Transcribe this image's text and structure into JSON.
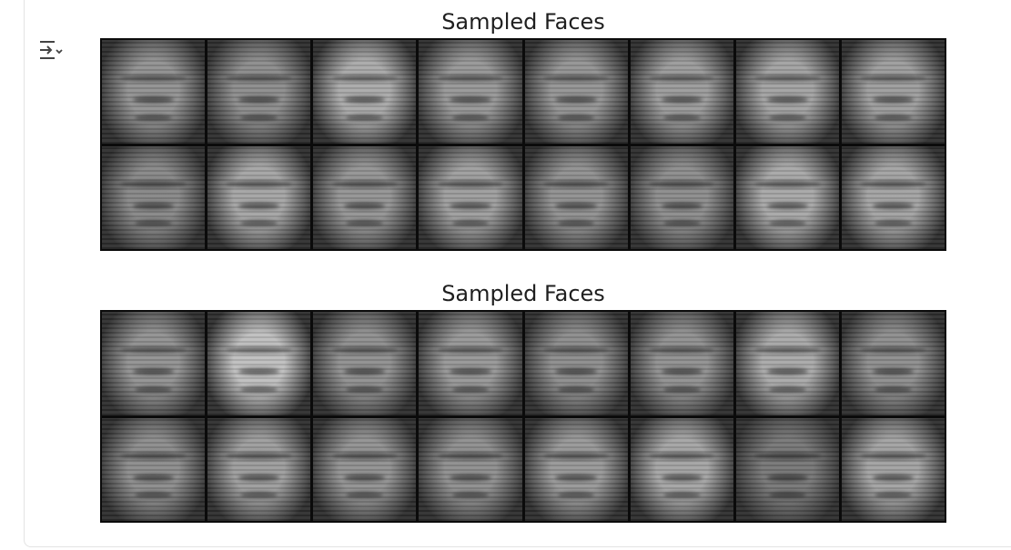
{
  "figures": [
    {
      "title": "Sampled Faces",
      "tones": [
        [
          "#8f8f8f",
          "#8a8a8a",
          "#a8a8a8",
          "#959595",
          "#929292",
          "#999999",
          "#a0a0a0",
          "#9b9b9b"
        ],
        [
          "#858585",
          "#a3a3a3",
          "#929292",
          "#9c9c9c",
          "#8e8e8e",
          "#8a8a8a",
          "#a6a6a6",
          "#a1a1a1"
        ]
      ]
    },
    {
      "title": "Sampled Faces",
      "tones": [
        [
          "#8f8f8f",
          "#bdbdbd",
          "#8d8d8d",
          "#959595",
          "#8a8a8a",
          "#8e8e8e",
          "#a7a7a7",
          "#8b8b8b"
        ],
        [
          "#8a8a8a",
          "#9b9b9b",
          "#8f8f8f",
          "#8c8c8c",
          "#969696",
          "#a3a3a3",
          "#757575",
          "#a0a0a0"
        ]
      ]
    }
  ],
  "output_toggle": {
    "icon": "output-collapse-icon"
  }
}
